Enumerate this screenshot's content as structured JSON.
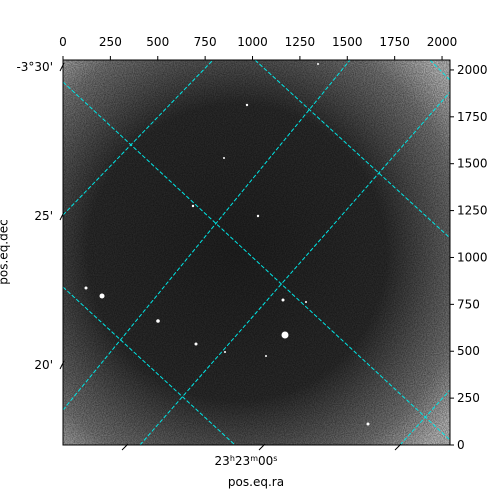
{
  "chart_data": {
    "type": "image",
    "x_label": "pos.eq.ra",
    "y_label": "pos.eq.dec",
    "xlim": [
      0,
      2042
    ],
    "xticks": [
      0,
      250,
      500,
      750,
      1000,
      1250,
      1500,
      1750,
      2000
    ],
    "ylim": [
      0,
      2053
    ],
    "yticks": [
      0,
      250,
      500,
      750,
      1000,
      1250,
      1500,
      1750,
      2000
    ],
    "dec_tick_labels": [
      "-3°30'",
      "25'",
      "20'"
    ],
    "ra_tick_label": {
      "h": "23",
      "m": "23",
      "s": "00"
    },
    "grid_color": "#00e5e5"
  }
}
